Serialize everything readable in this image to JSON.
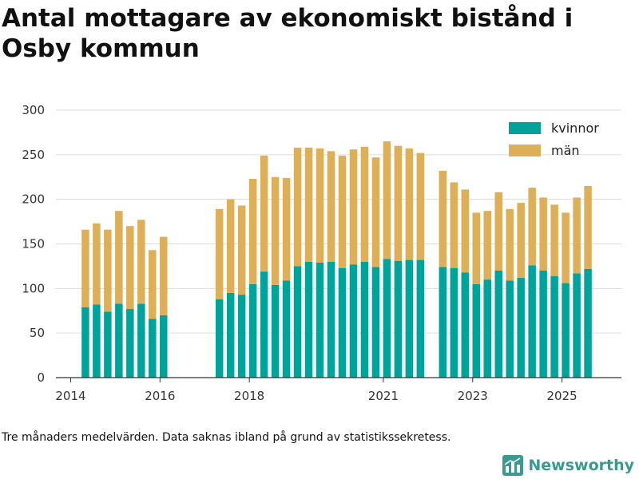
{
  "title": "Antal mottagare av ekonomiskt bistånd i Osby kommun",
  "footnote": "Tre månaders medelvärden. Data saknas ibland på grund av statistikssekretess.",
  "brand": {
    "name": "Newsworthy",
    "icon": "bar-chart-logo-icon",
    "color": "#3a9a8f"
  },
  "colors": {
    "kvinnor": "#00a39a",
    "man": "#ddaf58",
    "grid": "#dddddd"
  },
  "chart_data": {
    "type": "bar",
    "stacked": true,
    "title": "Antal mottagare av ekonomiskt bistånd i Osby kommun",
    "xlabel": "",
    "ylabel": "",
    "ylim": [
      0,
      300
    ],
    "yticks": [
      0,
      50,
      100,
      150,
      200,
      250,
      300
    ],
    "xlim": [
      2013.67,
      2026.33
    ],
    "xticks": [
      {
        "label": "2014",
        "value": 2014.0
      },
      {
        "label": "2016",
        "value": 2016.0
      },
      {
        "label": "2018",
        "value": 2018.0
      },
      {
        "label": "2021",
        "value": 2021.0
      },
      {
        "label": "2023",
        "value": 2023.0
      },
      {
        "label": "2025",
        "value": 2025.0
      }
    ],
    "legend": {
      "position": "top-right",
      "entries": [
        "kvinnor",
        "män"
      ]
    },
    "x": [
      2014.33,
      2014.58,
      2014.83,
      2015.08,
      2015.33,
      2015.58,
      2015.83,
      2016.08,
      2017.33,
      2017.58,
      2017.83,
      2018.08,
      2018.33,
      2018.58,
      2018.83,
      2019.08,
      2019.33,
      2019.58,
      2019.83,
      2020.08,
      2020.33,
      2020.58,
      2020.83,
      2021.08,
      2021.33,
      2021.58,
      2021.83,
      2022.33,
      2022.58,
      2022.83,
      2023.08,
      2023.33,
      2023.58,
      2023.83,
      2024.08,
      2024.33,
      2024.58,
      2024.83,
      2025.08,
      2025.33,
      2025.58
    ],
    "series": [
      {
        "name": "kvinnor",
        "values": [
          79,
          82,
          74,
          83,
          77,
          83,
          66,
          70,
          88,
          95,
          93,
          105,
          119,
          104,
          109,
          125,
          130,
          129,
          130,
          123,
          127,
          130,
          124,
          133,
          131,
          132,
          132,
          124,
          123,
          118,
          105,
          110,
          120,
          109,
          112,
          126,
          120,
          114,
          106,
          117,
          122
        ]
      },
      {
        "name": "män",
        "values": [
          87,
          91,
          92,
          104,
          93,
          94,
          77,
          88,
          101,
          105,
          100,
          118,
          130,
          121,
          115,
          133,
          128,
          128,
          124,
          126,
          129,
          129,
          123,
          132,
          129,
          125,
          120,
          108,
          96,
          93,
          80,
          77,
          88,
          80,
          84,
          87,
          82,
          80,
          79,
          85,
          93
        ]
      }
    ]
  }
}
